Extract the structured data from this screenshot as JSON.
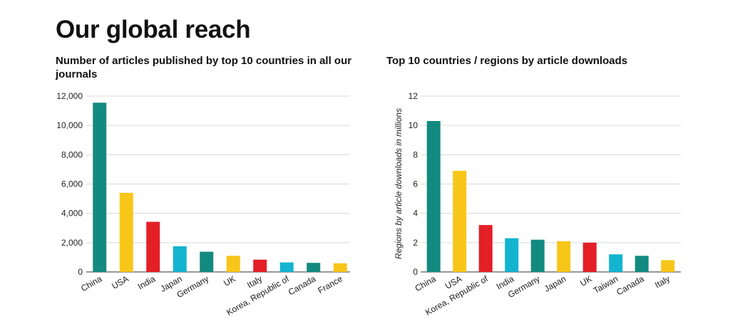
{
  "page": {
    "title": "Our global reach"
  },
  "chart_data": [
    {
      "type": "bar",
      "title": "Number of articles published by top 10 countries in all our journals",
      "xlabel": "",
      "ylabel": "",
      "categories": [
        "China",
        "USA",
        "India",
        "Japan",
        "Germany",
        "UK",
        "Italy",
        "Korea, Republic of",
        "Canada",
        "France"
      ],
      "values": [
        11550,
        5400,
        3420,
        1750,
        1380,
        1100,
        840,
        650,
        620,
        590
      ],
      "colors": [
        "#138a80",
        "#f8c619",
        "#e41f26",
        "#13b4cf",
        "#138a80",
        "#f8c619",
        "#e41f26",
        "#13b4cf",
        "#138a80",
        "#f8c619"
      ],
      "ylim": [
        0,
        12000
      ],
      "yticks": [
        0,
        2000,
        4000,
        6000,
        8000,
        10000,
        12000
      ],
      "ytick_labels": [
        "0",
        "2,000",
        "4,000",
        "6,000",
        "8,000",
        "10,000",
        "12,000"
      ],
      "grid": true
    },
    {
      "type": "bar",
      "title": "Top 10 countries / regions by article downloads",
      "xlabel": "",
      "ylabel": "Regions by article downloads in millions",
      "categories": [
        "China",
        "USA",
        "Korea, Republic of",
        "India",
        "Germany",
        "Japan",
        "UK",
        "Taiwan",
        "Canada",
        "Italy"
      ],
      "values": [
        10.3,
        6.9,
        3.2,
        2.3,
        2.2,
        2.1,
        2.0,
        1.2,
        1.1,
        0.8
      ],
      "colors": [
        "#138a80",
        "#f8c619",
        "#e41f26",
        "#13b4cf",
        "#138a80",
        "#f8c619",
        "#e41f26",
        "#13b4cf",
        "#138a80",
        "#f8c619"
      ],
      "ylim": [
        0,
        12
      ],
      "yticks": [
        0,
        2,
        4,
        6,
        8,
        10,
        12
      ],
      "ytick_labels": [
        "0",
        "2",
        "4",
        "6",
        "8",
        "10",
        "12"
      ],
      "grid": true
    }
  ]
}
